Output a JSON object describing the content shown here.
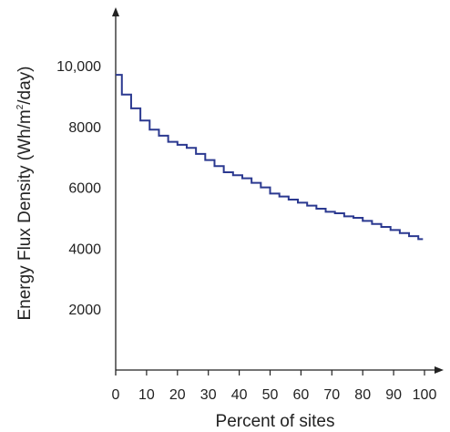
{
  "chart_data": {
    "type": "line",
    "step": true,
    "title": "",
    "xlabel": "Percent of sites",
    "ylabel_parts": [
      "Energy Flux Density (Wh/m",
      "2",
      "/day)"
    ],
    "xlim": [
      0,
      100
    ],
    "ylim": [
      0,
      11500
    ],
    "x_ticks": [
      0,
      10,
      20,
      30,
      40,
      50,
      60,
      70,
      80,
      90,
      100
    ],
    "x_tick_labels": [
      "0",
      "10",
      "20",
      "30",
      "40",
      "50",
      "60",
      "70",
      "80",
      "90",
      "100"
    ],
    "y_ticks": [
      2000,
      4000,
      6000,
      8000,
      10000
    ],
    "y_tick_labels": [
      "2000",
      "4000",
      "6000",
      "8000",
      "10,000"
    ],
    "grid": false,
    "line_color": "#2b3990",
    "series": [
      {
        "x": [
          0,
          2,
          5,
          8,
          11,
          14,
          17,
          20,
          23,
          26,
          29,
          32,
          35,
          38,
          41,
          44,
          47,
          50,
          53,
          56,
          59,
          62,
          65,
          68,
          71,
          74,
          77,
          80,
          83,
          86,
          89,
          92,
          95,
          98
        ],
        "y": [
          9700,
          9050,
          8600,
          8200,
          7900,
          7700,
          7500,
          7400,
          7300,
          7100,
          6900,
          6700,
          6500,
          6400,
          6300,
          6150,
          6000,
          5800,
          5700,
          5600,
          5500,
          5400,
          5300,
          5200,
          5150,
          5050,
          5000,
          4900,
          4800,
          4700,
          4600,
          4500,
          4400,
          4300
        ]
      }
    ]
  }
}
